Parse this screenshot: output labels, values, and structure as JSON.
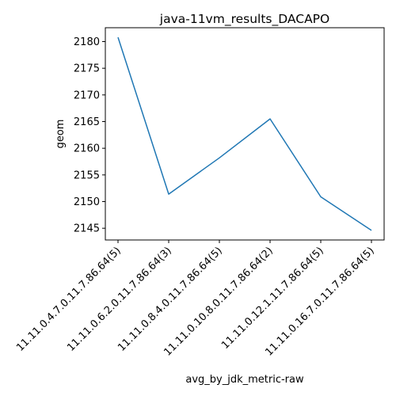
{
  "chart_data": {
    "type": "line",
    "title": "java-11vm_results_DACAPO",
    "xlabel": "avg_by_jdk_metric-raw",
    "ylabel": "geom",
    "categories": [
      "11.11.0.4.7.0.11.7.86.64(5)",
      "11.11.0.6.2.0.11.7.86.64(3)",
      "11.11.0.8.4.0.11.7.86.64(5)",
      "11.11.0.10.8.0.11.7.86.64(2)",
      "11.11.0.12.1.11.7.86.64(5)",
      "11.11.0.16.7.0.11.7.86.64(5)"
    ],
    "series": [
      {
        "values": [
          2180.8,
          2151.4,
          2158.2,
          2165.5,
          2150.9,
          2144.6
        ]
      }
    ],
    "yticks": [
      2145,
      2150,
      2155,
      2160,
      2165,
      2170,
      2175,
      2180
    ],
    "ylim": [
      2142.8,
      2182.6
    ],
    "grid": false,
    "line_color": "#1f77b4"
  }
}
